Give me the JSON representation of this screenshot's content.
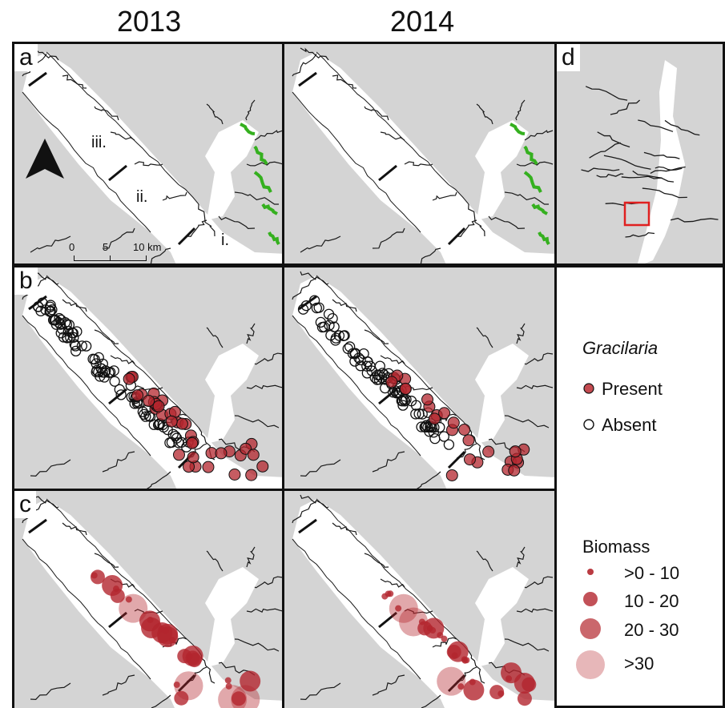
{
  "years": [
    "2013",
    "2014"
  ],
  "panel_labels": {
    "a": "a",
    "b": "b",
    "c": "c",
    "d": "d"
  },
  "zones": [
    "i.",
    "ii.",
    "iii."
  ],
  "scale": {
    "ticks": [
      "0",
      "5",
      "10 km"
    ]
  },
  "north_arrow": "north-arrow-icon",
  "legend": {
    "title": "Gracilaria",
    "present": "Present",
    "absent": "Absent",
    "biomass_title": "Biomass",
    "biomass_classes": [
      ">0 - 10",
      "10 - 20",
      "20 - 30",
      ">30"
    ]
  },
  "colors": {
    "land": "#d4d4d4",
    "water": "#ffffff",
    "present": "#b3262e",
    "vegetation": "#35b01f",
    "inset_box": "#e02020"
  }
}
